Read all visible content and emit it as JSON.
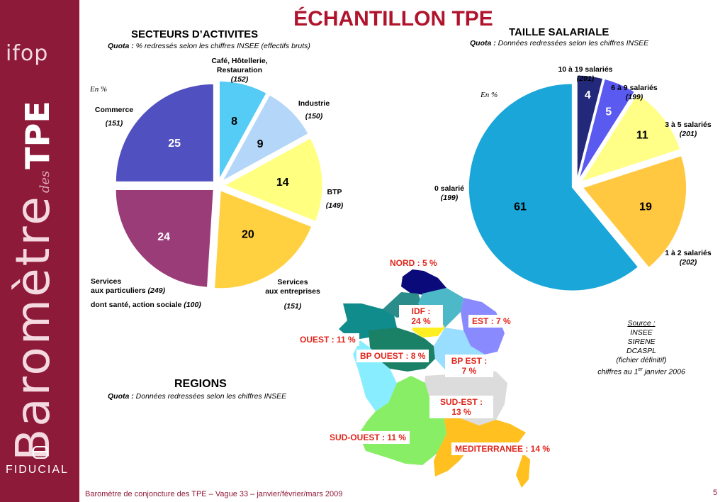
{
  "title": "ÉCHANTILLON TPE",
  "sidebar": {
    "logo": "ifop",
    "vertical_main": "Baromètre",
    "vertical_des": "des",
    "vertical_tpe": "TPE",
    "brand": "FIDUCIAL"
  },
  "secteurs": {
    "heading": "SECTEURS D’ACTIVITES",
    "quota_label": "Quota :",
    "quota_text": "% redressés selon les chiffres INSEE (effectifs bruts)",
    "unit": "En %",
    "labels": {
      "cafe": [
        "Café, Hôtellerie,",
        "Restauration",
        "(152)"
      ],
      "industrie": [
        "Industrie",
        "(150)"
      ],
      "btp": [
        "BTP",
        "(149)"
      ],
      "entreprises": [
        "Services",
        "aux entreprises",
        "(151)"
      ],
      "particuliers": [
        "Services",
        "aux particuliers",
        "(249)",
        "dont santé, action sociale",
        "(100)"
      ],
      "commerce": [
        "Commerce",
        "(151)"
      ]
    }
  },
  "taille": {
    "heading": "TAILLE SALARIALE",
    "quota_label": "Quota :",
    "quota_text": "Données redressées selon les chiffres INSEE",
    "unit": "En %",
    "labels": {
      "s10_19": [
        "10 à 19 salariés",
        "(201)"
      ],
      "s6_9": [
        "6 à 9 salariés",
        "(199)"
      ],
      "s3_5": [
        "3 à 5 salariés",
        "(201)"
      ],
      "s1_2": [
        "1 à 2 salariés",
        "(202)"
      ],
      "s0": [
        "0 salarié",
        "(199)"
      ]
    }
  },
  "regions": {
    "heading": "REGIONS",
    "quota_label": "Quota :",
    "quota_text": "Données redressées selon les chiffres INSEE",
    "nord": "NORD : 5 %",
    "idf": [
      "IDF :",
      "24 %"
    ],
    "est": "EST : 7 %",
    "ouest": "OUEST : 11 %",
    "bpouest": "BP OUEST : 8 %",
    "bpest": [
      "BP EST :",
      "7 %"
    ],
    "sudest": [
      "SUD-EST :",
      "13 %"
    ],
    "sudouest": "SUD-OUEST : 11 %",
    "med": "MEDITERRANEE : 14 %"
  },
  "source": {
    "lines": [
      "Source :",
      "INSEE",
      "SIRENE",
      "DCASPL",
      "(fichier définitif)"
    ],
    "last_pre": "chiffres au 1",
    "last_sup": "er",
    "last_post": " janvier 2006"
  },
  "footer": "Baromètre de conjoncture des TPE – Vague 33 – janvier/février/mars 2009",
  "page_number": "5",
  "chart_data": [
    {
      "type": "pie",
      "title": "SECTEURS D’ACTIVITES",
      "categories": [
        "Café, Hôtellerie, Restauration",
        "Industrie",
        "BTP",
        "Services aux entreprises",
        "Services aux particuliers",
        "Commerce"
      ],
      "values": [
        8,
        9,
        14,
        20,
        24,
        25
      ],
      "colors": [
        "#55ccf5",
        "#b4d6f8",
        "#ffff80",
        "#ffd040",
        "#9a3c78",
        "#5050c0"
      ],
      "unit": "En %"
    },
    {
      "type": "pie",
      "title": "TAILLE SALARIALE",
      "categories": [
        "10 à 19 salariés",
        "6 à 9 salariés",
        "3 à 5 salariés",
        "1 à 2 salariés",
        "0 salarié"
      ],
      "values": [
        4,
        5,
        11,
        19,
        61
      ],
      "colors": [
        "#22287a",
        "#5a5af0",
        "#ffff88",
        "#ffc840",
        "#1aa6d8"
      ],
      "unit": "En %"
    },
    {
      "type": "map",
      "title": "REGIONS",
      "categories": [
        "NORD",
        "IDF",
        "EST",
        "OUEST",
        "BP OUEST",
        "BP EST",
        "SUD-EST",
        "SUD-OUEST",
        "MEDITERRANEE"
      ],
      "values": [
        5,
        24,
        7,
        11,
        8,
        7,
        13,
        11,
        14
      ],
      "colors": [
        "#0a0a7a",
        "#ffee22",
        "#8a8aff",
        "#118c8c",
        "#1a8066",
        "#99ddff",
        "#dcdcdc",
        "#88ee66",
        "#ffc020"
      ],
      "unit": "%"
    }
  ]
}
